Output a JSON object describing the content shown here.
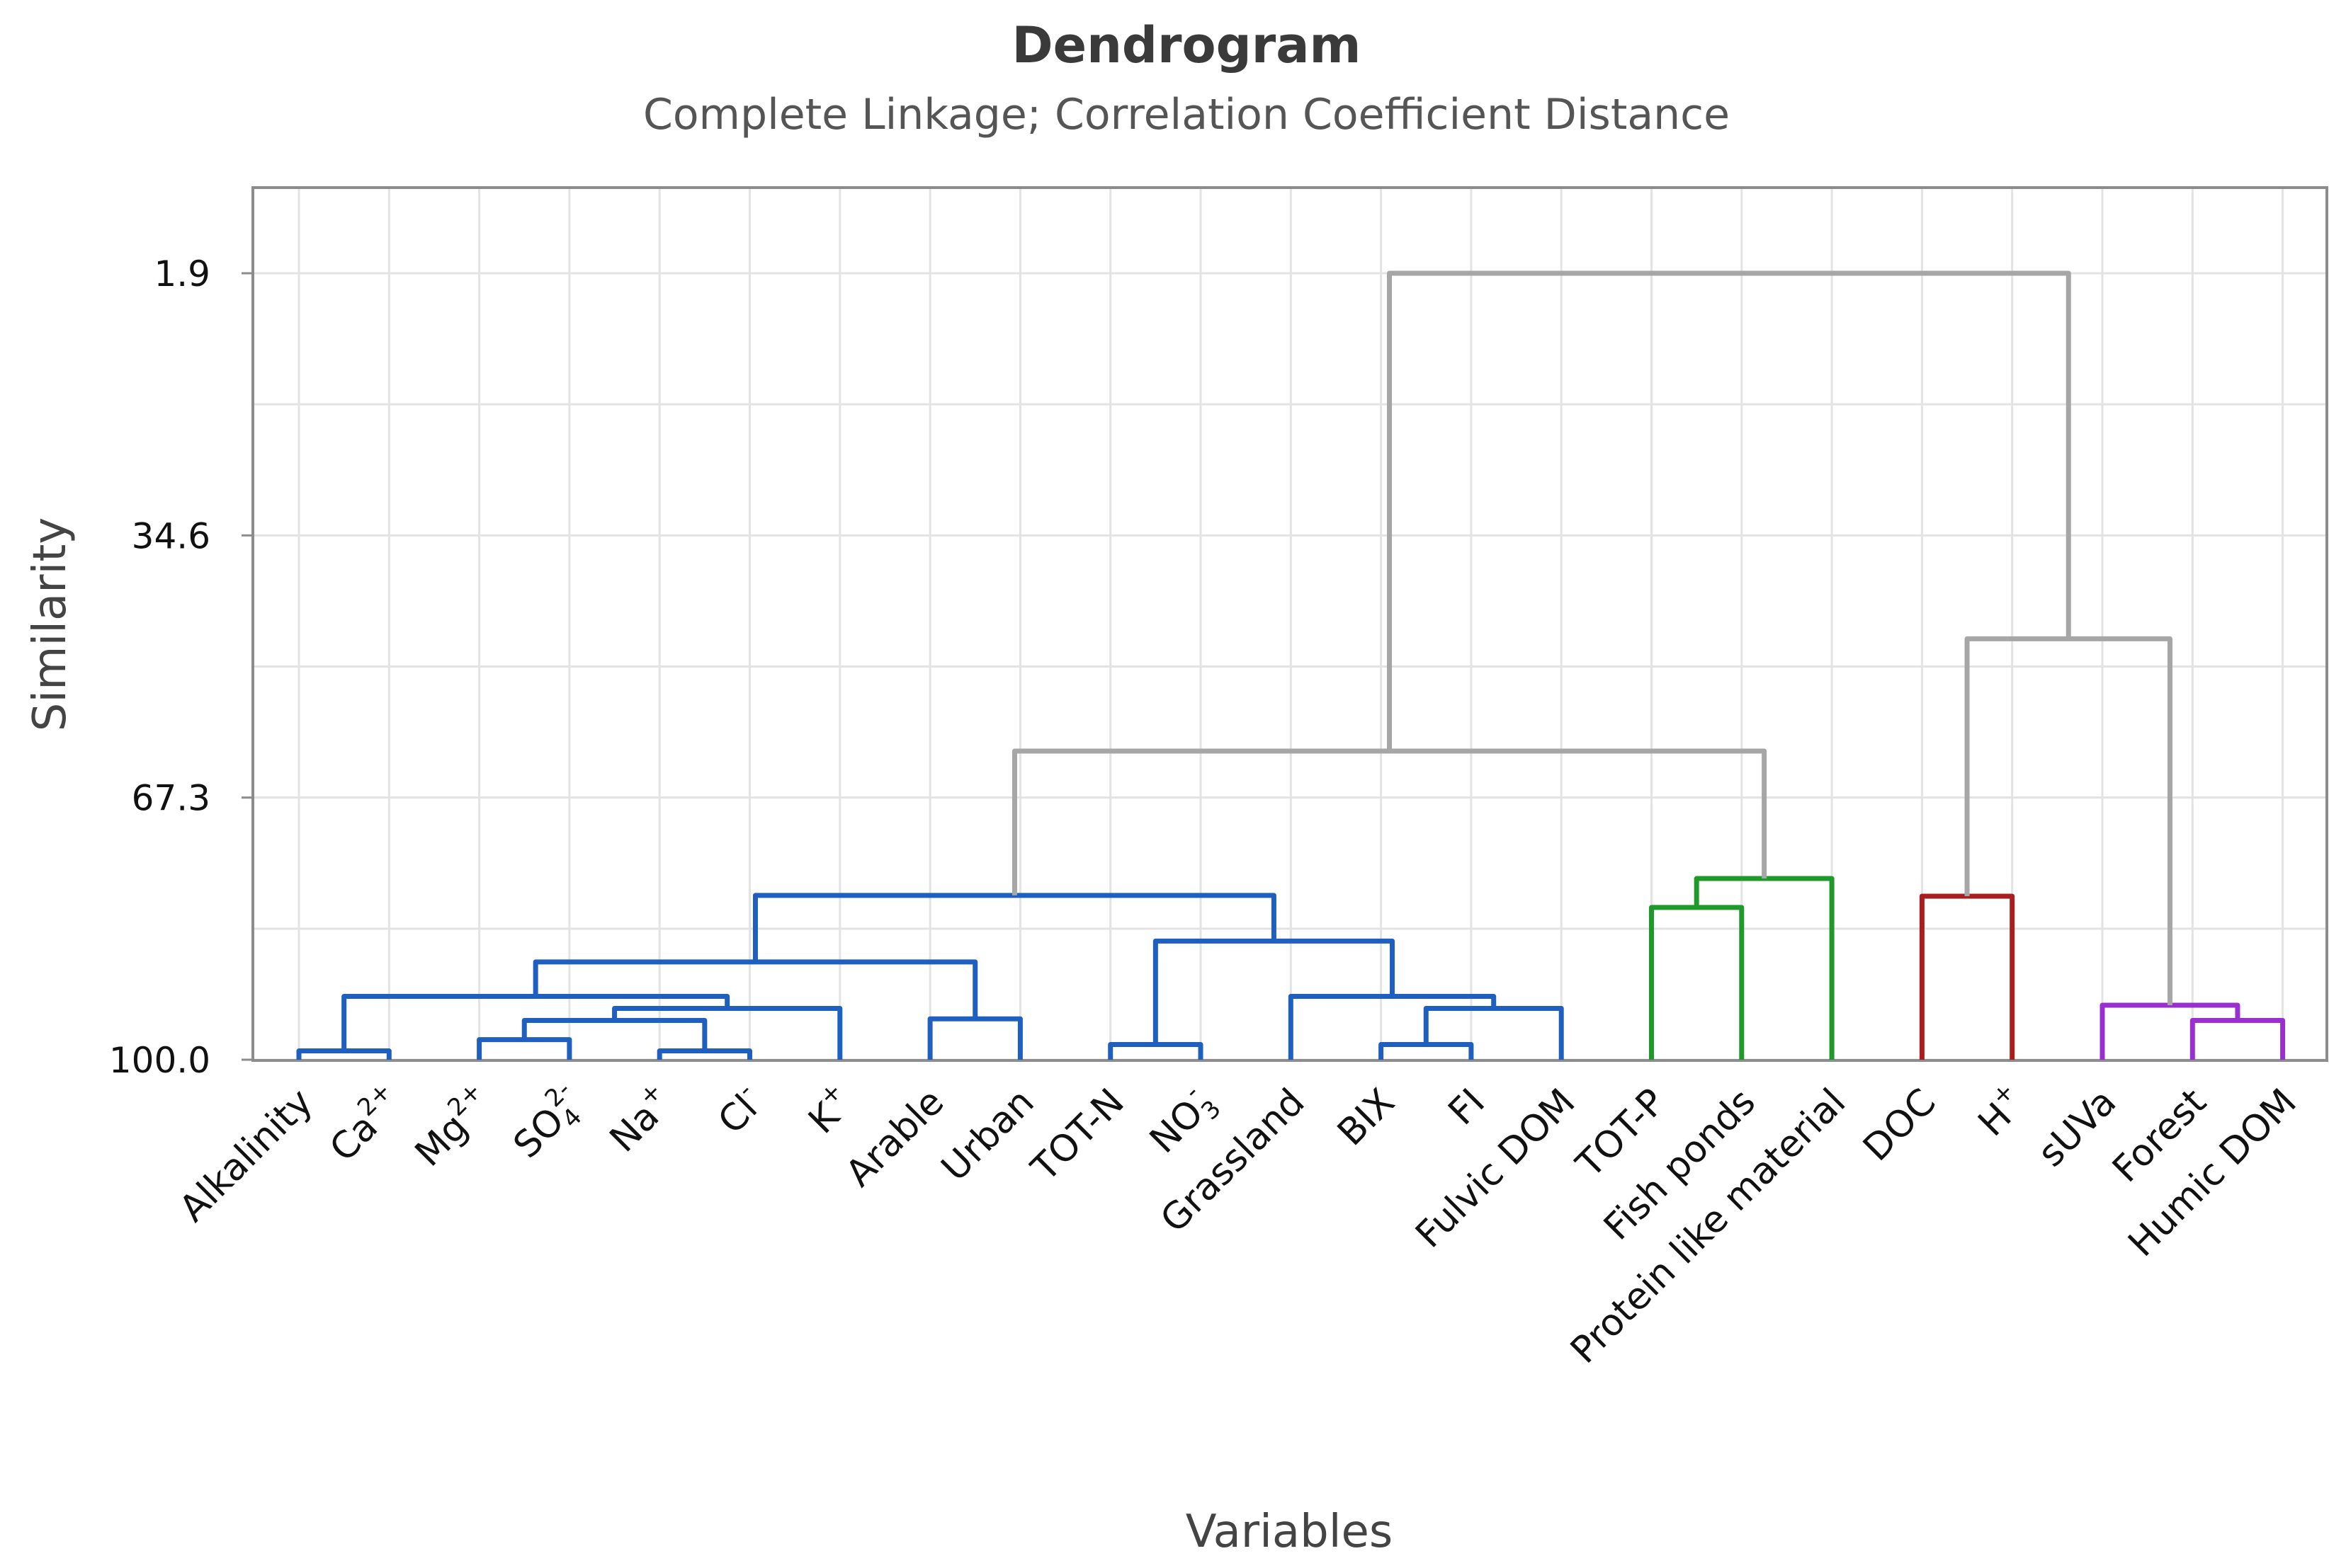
{
  "colors": {
    "blue": "#1f5fbf",
    "green": "#1f9a2a",
    "red": "#a81e1e",
    "purple": "#9a2fd0",
    "gray": "#a6a6a6"
  },
  "chart_data": {
    "type": "dendrogram",
    "title": "Dendrogram",
    "subtitle": "Complete Linkage; Correlation Coefficient Distance",
    "xlabel": "Variables",
    "ylabel": "Similarity",
    "ylim": [
      100.0,
      1.9
    ],
    "yticks": [
      "1.9",
      "34.6",
      "67.3",
      "100.0"
    ],
    "grid": true,
    "leaves": [
      {
        "id": "alk",
        "base": "Alkalinity"
      },
      {
        "id": "ca",
        "base": "Ca",
        "sup": "2+"
      },
      {
        "id": "mg",
        "base": "Mg",
        "sup": "2+"
      },
      {
        "id": "so4",
        "base": "SO",
        "sub": "4",
        "sup": "2-"
      },
      {
        "id": "na",
        "base": "Na",
        "sup": "+"
      },
      {
        "id": "cl",
        "base": "Cl",
        "sup": "-"
      },
      {
        "id": "k",
        "base": "K",
        "sup": "+"
      },
      {
        "id": "arable",
        "base": "Arable"
      },
      {
        "id": "urban",
        "base": "Urban"
      },
      {
        "id": "totn",
        "base": "TOT-N"
      },
      {
        "id": "no3",
        "base": "NO",
        "sub": "3",
        "sup": "-"
      },
      {
        "id": "grass",
        "base": "Grassland"
      },
      {
        "id": "bix",
        "base": "BIX"
      },
      {
        "id": "fi",
        "base": "FI"
      },
      {
        "id": "fulvic",
        "base": "Fulvic DOM"
      },
      {
        "id": "totp",
        "base": "TOT-P"
      },
      {
        "id": "fish",
        "base": "Fish ponds"
      },
      {
        "id": "protein",
        "base": "Protein like material"
      },
      {
        "id": "doc",
        "base": "DOC"
      },
      {
        "id": "h",
        "base": "H",
        "sup": "+"
      },
      {
        "id": "suva",
        "base": "sUVa"
      },
      {
        "id": "forest",
        "base": "Forest"
      },
      {
        "id": "humic",
        "base": "Humic DOM"
      }
    ],
    "merges": [
      {
        "id": "m1",
        "a": "alk",
        "b": "ca",
        "similarity": 98.9,
        "cluster": "blue"
      },
      {
        "id": "m2",
        "a": "na",
        "b": "cl",
        "similarity": 98.9,
        "cluster": "blue"
      },
      {
        "id": "m3",
        "a": "totn",
        "b": "no3",
        "similarity": 98.1,
        "cluster": "blue"
      },
      {
        "id": "m4",
        "a": "bix",
        "b": "fi",
        "similarity": 98.1,
        "cluster": "blue"
      },
      {
        "id": "m5",
        "a": "mg",
        "b": "so4",
        "similarity": 97.5,
        "cluster": "blue"
      },
      {
        "id": "m6",
        "a": "m5",
        "b": "m2",
        "similarity": 95.1,
        "cluster": "blue"
      },
      {
        "id": "m7",
        "a": "forest",
        "b": "humic",
        "similarity": 95.1,
        "cluster": "purple"
      },
      {
        "id": "m8",
        "a": "arable",
        "b": "urban",
        "similarity": 94.9,
        "cluster": "blue"
      },
      {
        "id": "m9",
        "a": "m6",
        "b": "k",
        "similarity": 93.6,
        "cluster": "blue"
      },
      {
        "id": "m10",
        "a": "m4",
        "b": "fulvic",
        "similarity": 93.6,
        "cluster": "blue"
      },
      {
        "id": "m11",
        "a": "suva",
        "b": "m7",
        "similarity": 93.2,
        "cluster": "purple"
      },
      {
        "id": "m12",
        "a": "m1",
        "b": "m9",
        "similarity": 92.1,
        "cluster": "blue"
      },
      {
        "id": "m13",
        "a": "grass",
        "b": "m10",
        "similarity": 92.1,
        "cluster": "blue"
      },
      {
        "id": "m14",
        "a": "m12",
        "b": "m8",
        "similarity": 87.8,
        "cluster": "blue"
      },
      {
        "id": "m15",
        "a": "m3",
        "b": "m13",
        "similarity": 85.2,
        "cluster": "blue"
      },
      {
        "id": "m16",
        "a": "totp",
        "b": "fish",
        "similarity": 81.0,
        "cluster": "green"
      },
      {
        "id": "m17",
        "a": "doc",
        "b": "h",
        "similarity": 79.6,
        "cluster": "red"
      },
      {
        "id": "m18",
        "a": "m14",
        "b": "m15",
        "similarity": 79.5,
        "cluster": "blue"
      },
      {
        "id": "m19",
        "a": "m16",
        "b": "protein",
        "similarity": 77.4,
        "cluster": "green"
      },
      {
        "id": "m20",
        "a": "m18",
        "b": "m19",
        "similarity": 61.5,
        "cluster": "gray"
      },
      {
        "id": "m21",
        "a": "m17",
        "b": "m11",
        "similarity": 47.5,
        "cluster": "gray"
      },
      {
        "id": "m22",
        "a": "m20",
        "b": "m21",
        "similarity": 1.9,
        "cluster": "gray"
      }
    ]
  }
}
